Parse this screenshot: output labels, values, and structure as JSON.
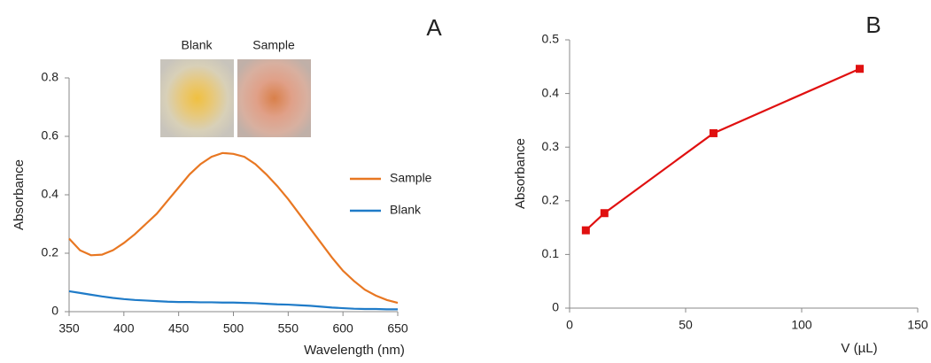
{
  "chart_data": [
    {
      "type": "line",
      "panel_label": "A",
      "x_label": "Wavelength  (nm)",
      "y_label": "Absorbance",
      "photo_labels": [
        "Blank",
        "Sample"
      ],
      "x": [
        350,
        360,
        370,
        380,
        390,
        400,
        410,
        420,
        430,
        440,
        450,
        460,
        470,
        480,
        490,
        500,
        510,
        520,
        530,
        540,
        550,
        560,
        570,
        580,
        590,
        600,
        610,
        620,
        630,
        640,
        650
      ],
      "series": [
        {
          "name": "Sample",
          "color": "#e87722",
          "values": [
            0.25,
            0.21,
            0.193,
            0.195,
            0.21,
            0.235,
            0.265,
            0.3,
            0.335,
            0.38,
            0.425,
            0.47,
            0.505,
            0.53,
            0.543,
            0.54,
            0.53,
            0.505,
            0.47,
            0.43,
            0.385,
            0.335,
            0.285,
            0.235,
            0.185,
            0.14,
            0.105,
            0.075,
            0.055,
            0.04,
            0.03
          ]
        },
        {
          "name": "Blank",
          "color": "#1f7bc8",
          "values": [
            0.07,
            0.064,
            0.058,
            0.052,
            0.047,
            0.043,
            0.04,
            0.038,
            0.036,
            0.034,
            0.033,
            0.033,
            0.032,
            0.032,
            0.031,
            0.031,
            0.03,
            0.029,
            0.027,
            0.025,
            0.024,
            0.022,
            0.02,
            0.017,
            0.014,
            0.012,
            0.01,
            0.009,
            0.009,
            0.008,
            0.008
          ]
        }
      ],
      "xlim": [
        350,
        650
      ],
      "xticks": [
        350,
        400,
        450,
        500,
        550,
        600,
        650
      ],
      "ylim": [
        0,
        0.8
      ],
      "yticks": [
        0,
        0.2,
        0.4,
        0.6,
        0.8
      ],
      "legend": "right"
    },
    {
      "type": "line",
      "panel_label": "B",
      "x_label": "V (µL)",
      "y_label": "Absorbance",
      "x": [
        7,
        15,
        62,
        125
      ],
      "values": [
        0.145,
        0.177,
        0.326,
        0.446
      ],
      "color": "#e01010",
      "marker": "square",
      "xlim": [
        0,
        150
      ],
      "xticks": [
        0,
        50,
        100,
        150
      ],
      "ylim": [
        0,
        0.5
      ],
      "yticks": [
        0,
        0.1,
        0.2,
        0.3,
        0.4,
        0.5
      ]
    }
  ]
}
